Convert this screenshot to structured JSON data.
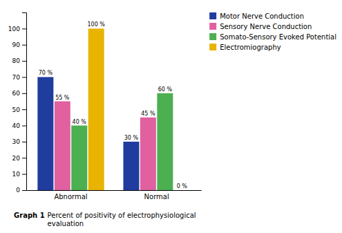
{
  "chart_data": {
    "type": "bar",
    "categories": [
      "Abnormal",
      "Normal"
    ],
    "series": [
      {
        "name": "Motor Nerve Conduction",
        "color": "#1f3c9e",
        "values": [
          70,
          30
        ],
        "value_labels": [
          "70 %",
          "30 %"
        ]
      },
      {
        "name": "Sensory Nerve Conduction",
        "color": "#e060a0",
        "values": [
          55,
          45
        ],
        "value_labels": [
          "55 %",
          "45 %"
        ]
      },
      {
        "name": "Somato-Sensory Evoked Potential",
        "color": "#4caf50",
        "values": [
          40,
          60
        ],
        "value_labels": [
          "40 %",
          "60 %"
        ]
      },
      {
        "name": "Electromiography",
        "color": "#e8b400",
        "values": [
          100,
          0
        ],
        "value_labels": [
          "100 %",
          "0 %"
        ]
      }
    ],
    "ylim": [
      0,
      110
    ],
    "yticks": [
      0,
      10,
      20,
      30,
      40,
      50,
      60,
      70,
      80,
      90,
      100
    ],
    "data_labels": true,
    "legend": "upper right",
    "annotations": [
      "Graph 1",
      "Percent of positivity of electrophysiological\nevaluation"
    ]
  }
}
